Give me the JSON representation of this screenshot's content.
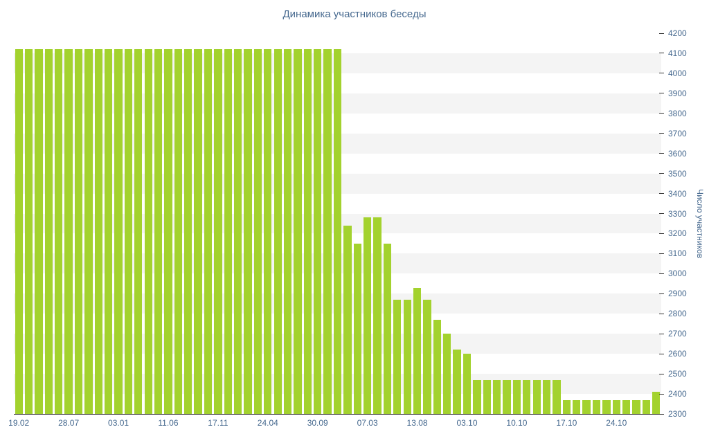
{
  "chart_data": {
    "type": "bar",
    "title": "Динамика участников беседы",
    "xlabel": "",
    "ylabel": "Число участников",
    "ylim": [
      2300,
      4200
    ],
    "ytick_step": 100,
    "grid": "alternating-horizontal-bands",
    "legend": false,
    "x_tick_every": 5,
    "x_tick_labels": [
      "19.02",
      "28.07",
      "03.01",
      "11.06",
      "17.11",
      "24.04",
      "30.09",
      "07.03",
      "13.08",
      "03.10",
      "10.10",
      "17.10",
      "24.10"
    ],
    "values": [
      4120,
      4120,
      4120,
      4120,
      4120,
      4120,
      4120,
      4120,
      4120,
      4120,
      4120,
      4120,
      4120,
      4120,
      4120,
      4120,
      4120,
      4120,
      4120,
      4120,
      4120,
      4120,
      4120,
      4120,
      4120,
      4120,
      4120,
      4120,
      4120,
      4120,
      4120,
      4120,
      4120,
      3240,
      3150,
      3280,
      3280,
      3150,
      2870,
      2870,
      2930,
      2870,
      2770,
      2700,
      2620,
      2600,
      2470,
      2470,
      2470,
      2470,
      2470,
      2470,
      2470,
      2470,
      2470,
      2370,
      2370,
      2370,
      2370,
      2370,
      2370,
      2370,
      2370,
      2370,
      2410
    ]
  },
  "colors": {
    "bar": "#A3D22E",
    "text": "#45688E",
    "band": "#F4F4F4",
    "axis": "#333333"
  }
}
